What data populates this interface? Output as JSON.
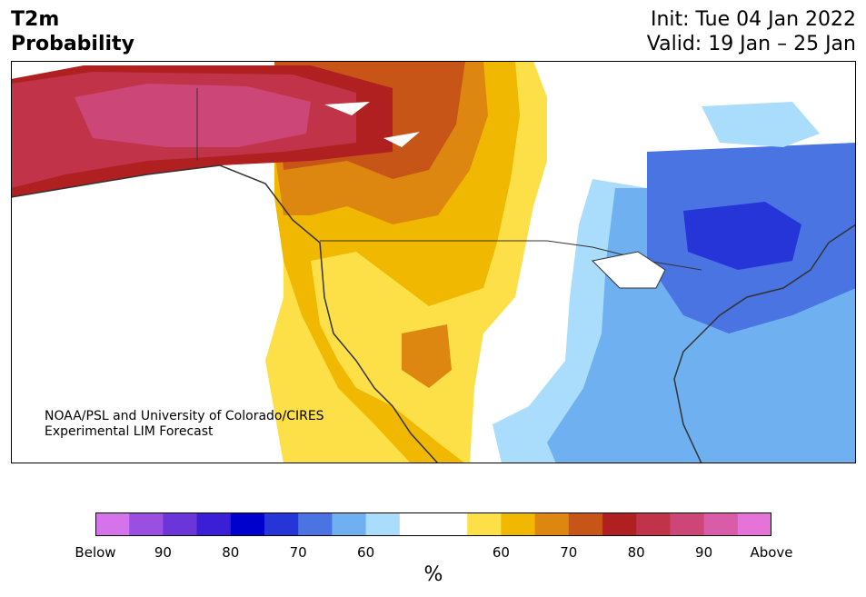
{
  "title": {
    "line1": "T2m",
    "line2": "Probability",
    "init": "Init: Tue 04 Jan 2022",
    "valid": "Valid: 19 Jan – 25 Jan"
  },
  "credit": {
    "line1": "NOAA/PSL and University of Colorado/CIRES",
    "line2": "Experimental LIM Forecast"
  },
  "colorbar": {
    "colors": [
      "#d473ea",
      "#9b4fe0",
      "#6b35d9",
      "#3a1fd6",
      "#0000cc",
      "#2535d8",
      "#4a74e2",
      "#6fb0f1",
      "#aadcfb",
      "#ffffff",
      "#ffffff",
      "#fde047",
      "#f0b800",
      "#de8710",
      "#c85518",
      "#b02020",
      "#c03348",
      "#cd4678",
      "#d85ca8",
      "#e573d8"
    ],
    "tick_labels": [
      "Below",
      "90",
      "80",
      "70",
      "60",
      "",
      "60",
      "70",
      "80",
      "90",
      "Above"
    ],
    "units": "%"
  },
  "map_colors": {
    "land": "#ffffff",
    "border": "#333333",
    "above": [
      "#fde047",
      "#f0b800",
      "#de8710",
      "#c85518",
      "#b02020",
      "#c03348",
      "#cd4678"
    ],
    "below": [
      "#aadcfb",
      "#6fb0f1",
      "#4a74e2",
      "#2535d8"
    ]
  }
}
